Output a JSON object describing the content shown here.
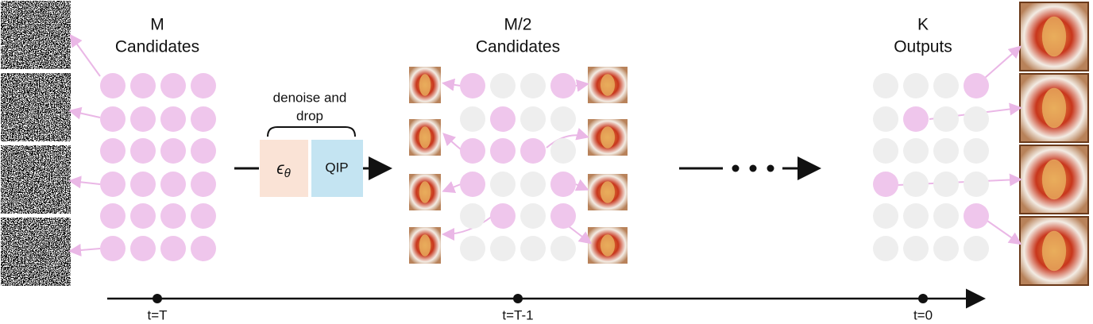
{
  "left": {
    "count_label": "M",
    "label": "Candidates"
  },
  "middle": {
    "count_label": "M/2",
    "label": "Candidates"
  },
  "right": {
    "count_label": "K",
    "label": "Outputs"
  },
  "operation": {
    "caption_lines": [
      "denoise and",
      "drop"
    ],
    "model": {
      "symbol": "ϵ",
      "subscript": "θ"
    },
    "selector": "QIP"
  },
  "timeline": {
    "ticks": [
      "t=T",
      "t=T-1",
      "t=0"
    ]
  }
}
